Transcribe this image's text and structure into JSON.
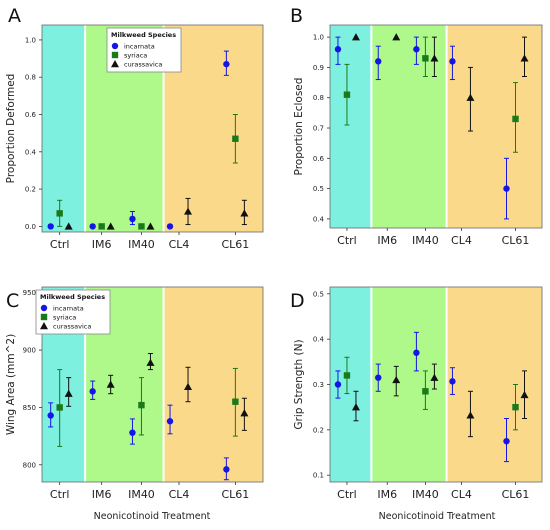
{
  "figure": {
    "x_axis_title": "Neonicotinoid Treatment",
    "categories": [
      "Ctrl",
      "IM6",
      "IM40",
      "CL4",
      "CL61"
    ],
    "legend_title": "Milkweed Species",
    "series_names": [
      "incarnata",
      "syriaca",
      "curassavica"
    ],
    "colors": {
      "incarnata": "#1515e8",
      "syriaca": "#1a7a1a",
      "curassavica": "#111111",
      "ctrl_band": "#7df0df",
      "im_band": "#aef98a",
      "cl_band": "#fbd98a"
    }
  },
  "chart_data": [
    {
      "panel": "A",
      "type": "scatter",
      "ylabel": "Proportion Deformed",
      "ylim": [
        -0.03,
        1.08
      ],
      "yticks": [
        "0.0",
        "0.2",
        "0.4",
        "0.6",
        "0.8",
        "1.0"
      ],
      "legend": true,
      "legend_position": "top-center",
      "categories": [
        "Ctrl",
        "IM6",
        "IM40",
        "CL4",
        "CL61"
      ],
      "series": [
        {
          "name": "incarnata",
          "values": [
            0.0,
            0.0,
            0.04,
            0.0,
            0.87
          ],
          "lower": [
            0.0,
            0.0,
            0.01,
            0.0,
            0.81
          ],
          "upper": [
            0.0,
            0.0,
            0.08,
            0.0,
            0.94
          ]
        },
        {
          "name": "syriaca",
          "values": [
            0.07,
            0.0,
            0.0,
            null,
            0.47
          ],
          "lower": [
            0.0,
            0.0,
            0.0,
            null,
            0.34
          ],
          "upper": [
            0.14,
            0.0,
            0.0,
            null,
            0.6
          ]
        },
        {
          "name": "curassavica",
          "values": [
            0.0,
            0.0,
            0.0,
            0.08,
            0.07
          ],
          "lower": [
            0.0,
            0.0,
            0.0,
            0.01,
            0.01
          ],
          "upper": [
            0.0,
            0.0,
            0.0,
            0.15,
            0.14
          ]
        }
      ]
    },
    {
      "panel": "B",
      "type": "scatter",
      "ylabel": "Proportion Eclosed",
      "ylim": [
        0.37,
        1.04
      ],
      "yticks": [
        "0.4",
        "0.5",
        "0.6",
        "0.7",
        "0.8",
        "0.9",
        "1.0"
      ],
      "legend": false,
      "categories": [
        "Ctrl",
        "IM6",
        "IM40",
        "CL4",
        "CL61"
      ],
      "series": [
        {
          "name": "incarnata",
          "values": [
            0.96,
            0.92,
            0.96,
            0.92,
            0.5
          ],
          "lower": [
            0.91,
            0.86,
            0.91,
            0.86,
            0.4
          ],
          "upper": [
            1.0,
            0.97,
            1.0,
            0.97,
            0.6
          ]
        },
        {
          "name": "syriaca",
          "values": [
            0.81,
            null,
            0.93,
            null,
            0.73
          ],
          "lower": [
            0.71,
            null,
            0.87,
            null,
            0.62
          ],
          "upper": [
            0.91,
            null,
            1.0,
            null,
            0.85
          ]
        },
        {
          "name": "curassavica",
          "values": [
            1.0,
            1.0,
            0.93,
            0.8,
            0.93
          ],
          "lower": [
            1.0,
            1.0,
            0.87,
            0.69,
            0.87
          ],
          "upper": [
            1.0,
            1.0,
            1.0,
            0.9,
            1.0
          ]
        }
      ]
    },
    {
      "panel": "C",
      "type": "scatter",
      "ylabel": "Wing Area (mm^2)",
      "ylim": [
        785,
        955
      ],
      "yticks": [
        "800",
        "850",
        "900",
        "950"
      ],
      "legend": true,
      "legend_position": "top-left",
      "categories": [
        "Ctrl",
        "IM6",
        "IM40",
        "CL4",
        "CL61"
      ],
      "series": [
        {
          "name": "incarnata",
          "values": [
            843,
            864,
            828,
            838,
            796
          ],
          "lower": [
            833,
            857,
            818,
            827,
            787
          ],
          "upper": [
            854,
            873,
            840,
            852,
            806
          ]
        },
        {
          "name": "syriaca",
          "values": [
            850,
            null,
            852,
            null,
            855
          ],
          "lower": [
            816,
            null,
            826,
            null,
            825
          ],
          "upper": [
            883,
            null,
            876,
            null,
            884
          ]
        },
        {
          "name": "curassavica",
          "values": [
            862,
            870,
            889,
            868,
            845
          ],
          "lower": [
            851,
            862,
            883,
            855,
            830
          ],
          "upper": [
            876,
            878,
            897,
            885,
            858
          ]
        }
      ]
    },
    {
      "panel": "D",
      "type": "scatter",
      "ylabel": "Grip Strength (N)",
      "ylim": [
        0.085,
        0.515
      ],
      "yticks": [
        "0.1",
        "0.2",
        "0.3",
        "0.4",
        "0.5"
      ],
      "legend": false,
      "categories": [
        "Ctrl",
        "IM6",
        "IM40",
        "CL4",
        "CL61"
      ],
      "series": [
        {
          "name": "incarnata",
          "values": [
            0.3,
            0.315,
            0.37,
            0.307,
            0.175
          ],
          "lower": [
            0.27,
            0.285,
            0.33,
            0.278,
            0.13
          ],
          "upper": [
            0.33,
            0.345,
            0.415,
            0.337,
            0.225
          ]
        },
        {
          "name": "syriaca",
          "values": [
            0.32,
            null,
            0.285,
            null,
            0.25
          ],
          "lower": [
            0.28,
            null,
            0.245,
            null,
            0.2
          ],
          "upper": [
            0.36,
            null,
            0.33,
            null,
            0.3
          ]
        },
        {
          "name": "curassavica",
          "values": [
            0.25,
            0.31,
            0.315,
            0.232,
            0.277
          ],
          "lower": [
            0.22,
            0.275,
            0.29,
            0.185,
            0.225
          ],
          "upper": [
            0.285,
            0.34,
            0.345,
            0.285,
            0.33
          ]
        }
      ]
    }
  ]
}
